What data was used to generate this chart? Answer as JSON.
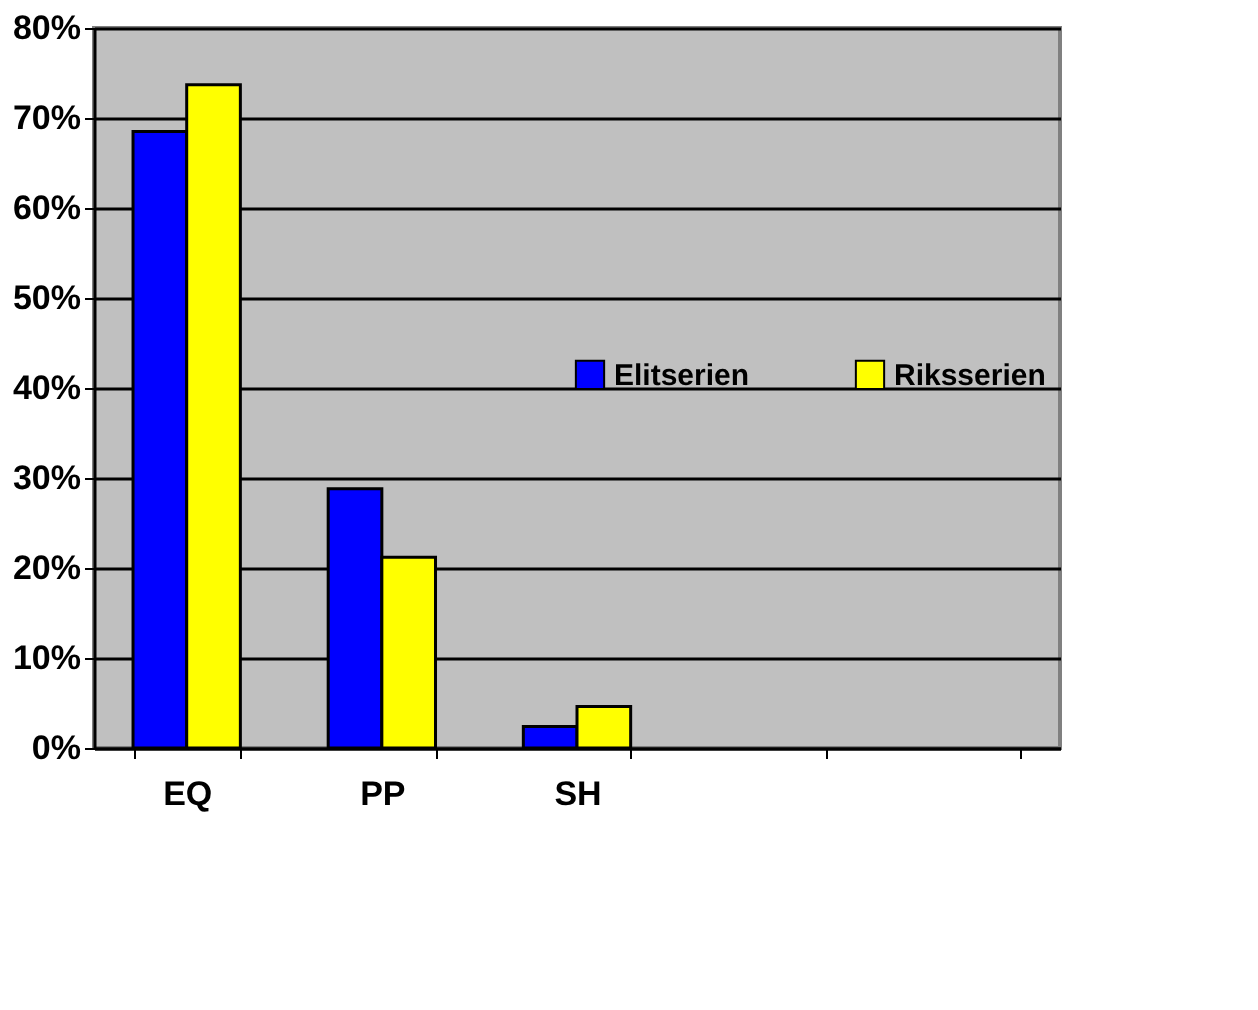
{
  "chart_data": {
    "type": "bar",
    "categories": [
      "EQ",
      "PP",
      "SH",
      null,
      null
    ],
    "series": [
      {
        "name": "Elitserien",
        "color": "#0000ff",
        "values": [
          68.5,
          28.8,
          2.4,
          null,
          null
        ]
      },
      {
        "name": "Riksserien",
        "color": "#ffff00",
        "values": [
          73.7,
          21.2,
          4.6,
          null,
          null
        ]
      }
    ],
    "ylim": [
      0,
      80
    ],
    "yticks": [
      {
        "value": 0,
        "label": "0%"
      },
      {
        "value": 10,
        "label": "10%"
      },
      {
        "value": 20,
        "label": "20%"
      },
      {
        "value": 30,
        "label": "30%"
      },
      {
        "value": 40,
        "label": "40%"
      },
      {
        "value": 50,
        "label": "50%"
      },
      {
        "value": 60,
        "label": "60%"
      },
      {
        "value": 70,
        "label": "70%"
      },
      {
        "value": 80,
        "label": "80%"
      }
    ],
    "grid": "y",
    "legend": "right"
  }
}
